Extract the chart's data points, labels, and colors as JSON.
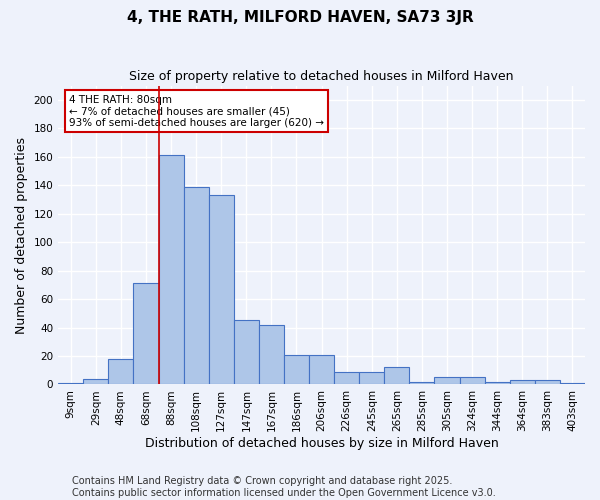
{
  "title": "4, THE RATH, MILFORD HAVEN, SA73 3JR",
  "subtitle": "Size of property relative to detached houses in Milford Haven",
  "xlabel": "Distribution of detached houses by size in Milford Haven",
  "ylabel": "Number of detached properties",
  "categories": [
    "9sqm",
    "29sqm",
    "48sqm",
    "68sqm",
    "88sqm",
    "108sqm",
    "127sqm",
    "147sqm",
    "167sqm",
    "186sqm",
    "206sqm",
    "226sqm",
    "245sqm",
    "265sqm",
    "285sqm",
    "305sqm",
    "324sqm",
    "344sqm",
    "364sqm",
    "383sqm",
    "403sqm"
  ],
  "values": [
    1,
    4,
    18,
    71,
    161,
    139,
    133,
    45,
    42,
    21,
    21,
    9,
    9,
    12,
    2,
    5,
    5,
    2,
    3,
    3,
    1
  ],
  "bar_color": "#aec6e8",
  "bar_edge_color": "#4472c4",
  "vline_index": 4,
  "annotation_text_line1": "4 THE RATH: 80sqm",
  "annotation_text_line2": "← 7% of detached houses are smaller (45)",
  "annotation_text_line3": "93% of semi-detached houses are larger (620) →",
  "annotation_box_color": "#ffffff",
  "annotation_box_edge": "#cc0000",
  "vline_color": "#cc0000",
  "footer_line1": "Contains HM Land Registry data © Crown copyright and database right 2025.",
  "footer_line2": "Contains public sector information licensed under the Open Government Licence v3.0.",
  "ylim": [
    0,
    210
  ],
  "yticks": [
    0,
    20,
    40,
    60,
    80,
    100,
    120,
    140,
    160,
    180,
    200
  ],
  "background_color": "#eef2fb",
  "grid_color": "#ffffff",
  "title_fontsize": 11,
  "subtitle_fontsize": 9,
  "xlabel_fontsize": 9,
  "ylabel_fontsize": 9,
  "tick_fontsize": 7.5,
  "footer_fontsize": 7,
  "annot_fontsize": 7.5
}
